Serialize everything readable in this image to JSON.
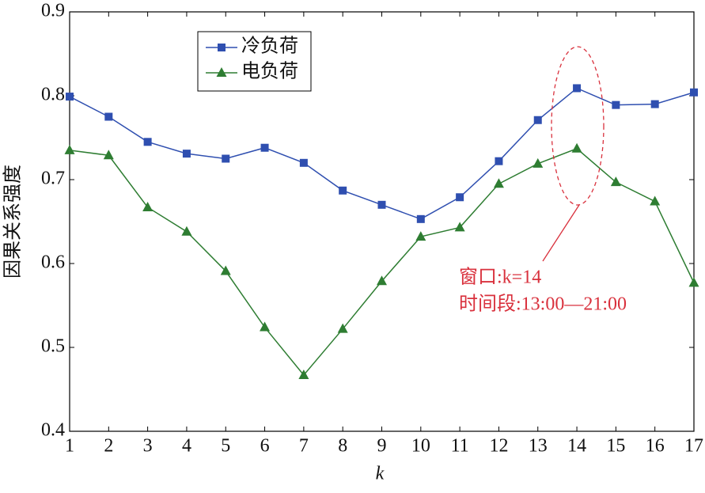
{
  "chart_data": {
    "type": "line",
    "x": [
      1,
      2,
      3,
      4,
      5,
      6,
      7,
      8,
      9,
      10,
      11,
      12,
      13,
      14,
      15,
      16,
      17
    ],
    "series": [
      {
        "name": "冷负荷",
        "color": "#2f4fb0",
        "marker": "square",
        "values": [
          0.799,
          0.775,
          0.745,
          0.731,
          0.725,
          0.738,
          0.72,
          0.687,
          0.67,
          0.653,
          0.679,
          0.722,
          0.771,
          0.809,
          0.789,
          0.79,
          0.804
        ]
      },
      {
        "name": "电负荷",
        "color": "#2e7d32",
        "marker": "triangle",
        "values": [
          0.735,
          0.729,
          0.667,
          0.638,
          0.591,
          0.524,
          0.467,
          0.522,
          0.579,
          0.632,
          0.643,
          0.695,
          0.719,
          0.737,
          0.697,
          0.674,
          0.577
        ]
      }
    ],
    "xlabel": "k",
    "ylabel": "因果关系强度",
    "xlim": [
      1,
      17
    ],
    "ylim": [
      0.4,
      0.9
    ],
    "xticks": [
      1,
      2,
      3,
      4,
      5,
      6,
      7,
      8,
      9,
      10,
      11,
      12,
      13,
      14,
      15,
      16,
      17
    ],
    "yticks": [
      0.4,
      0.5,
      0.6,
      0.7,
      0.8,
      0.9
    ],
    "annotations": [
      "窗口:k=14",
      "时间段:13:00—21:00"
    ],
    "annotation_color": "#d9313d"
  }
}
